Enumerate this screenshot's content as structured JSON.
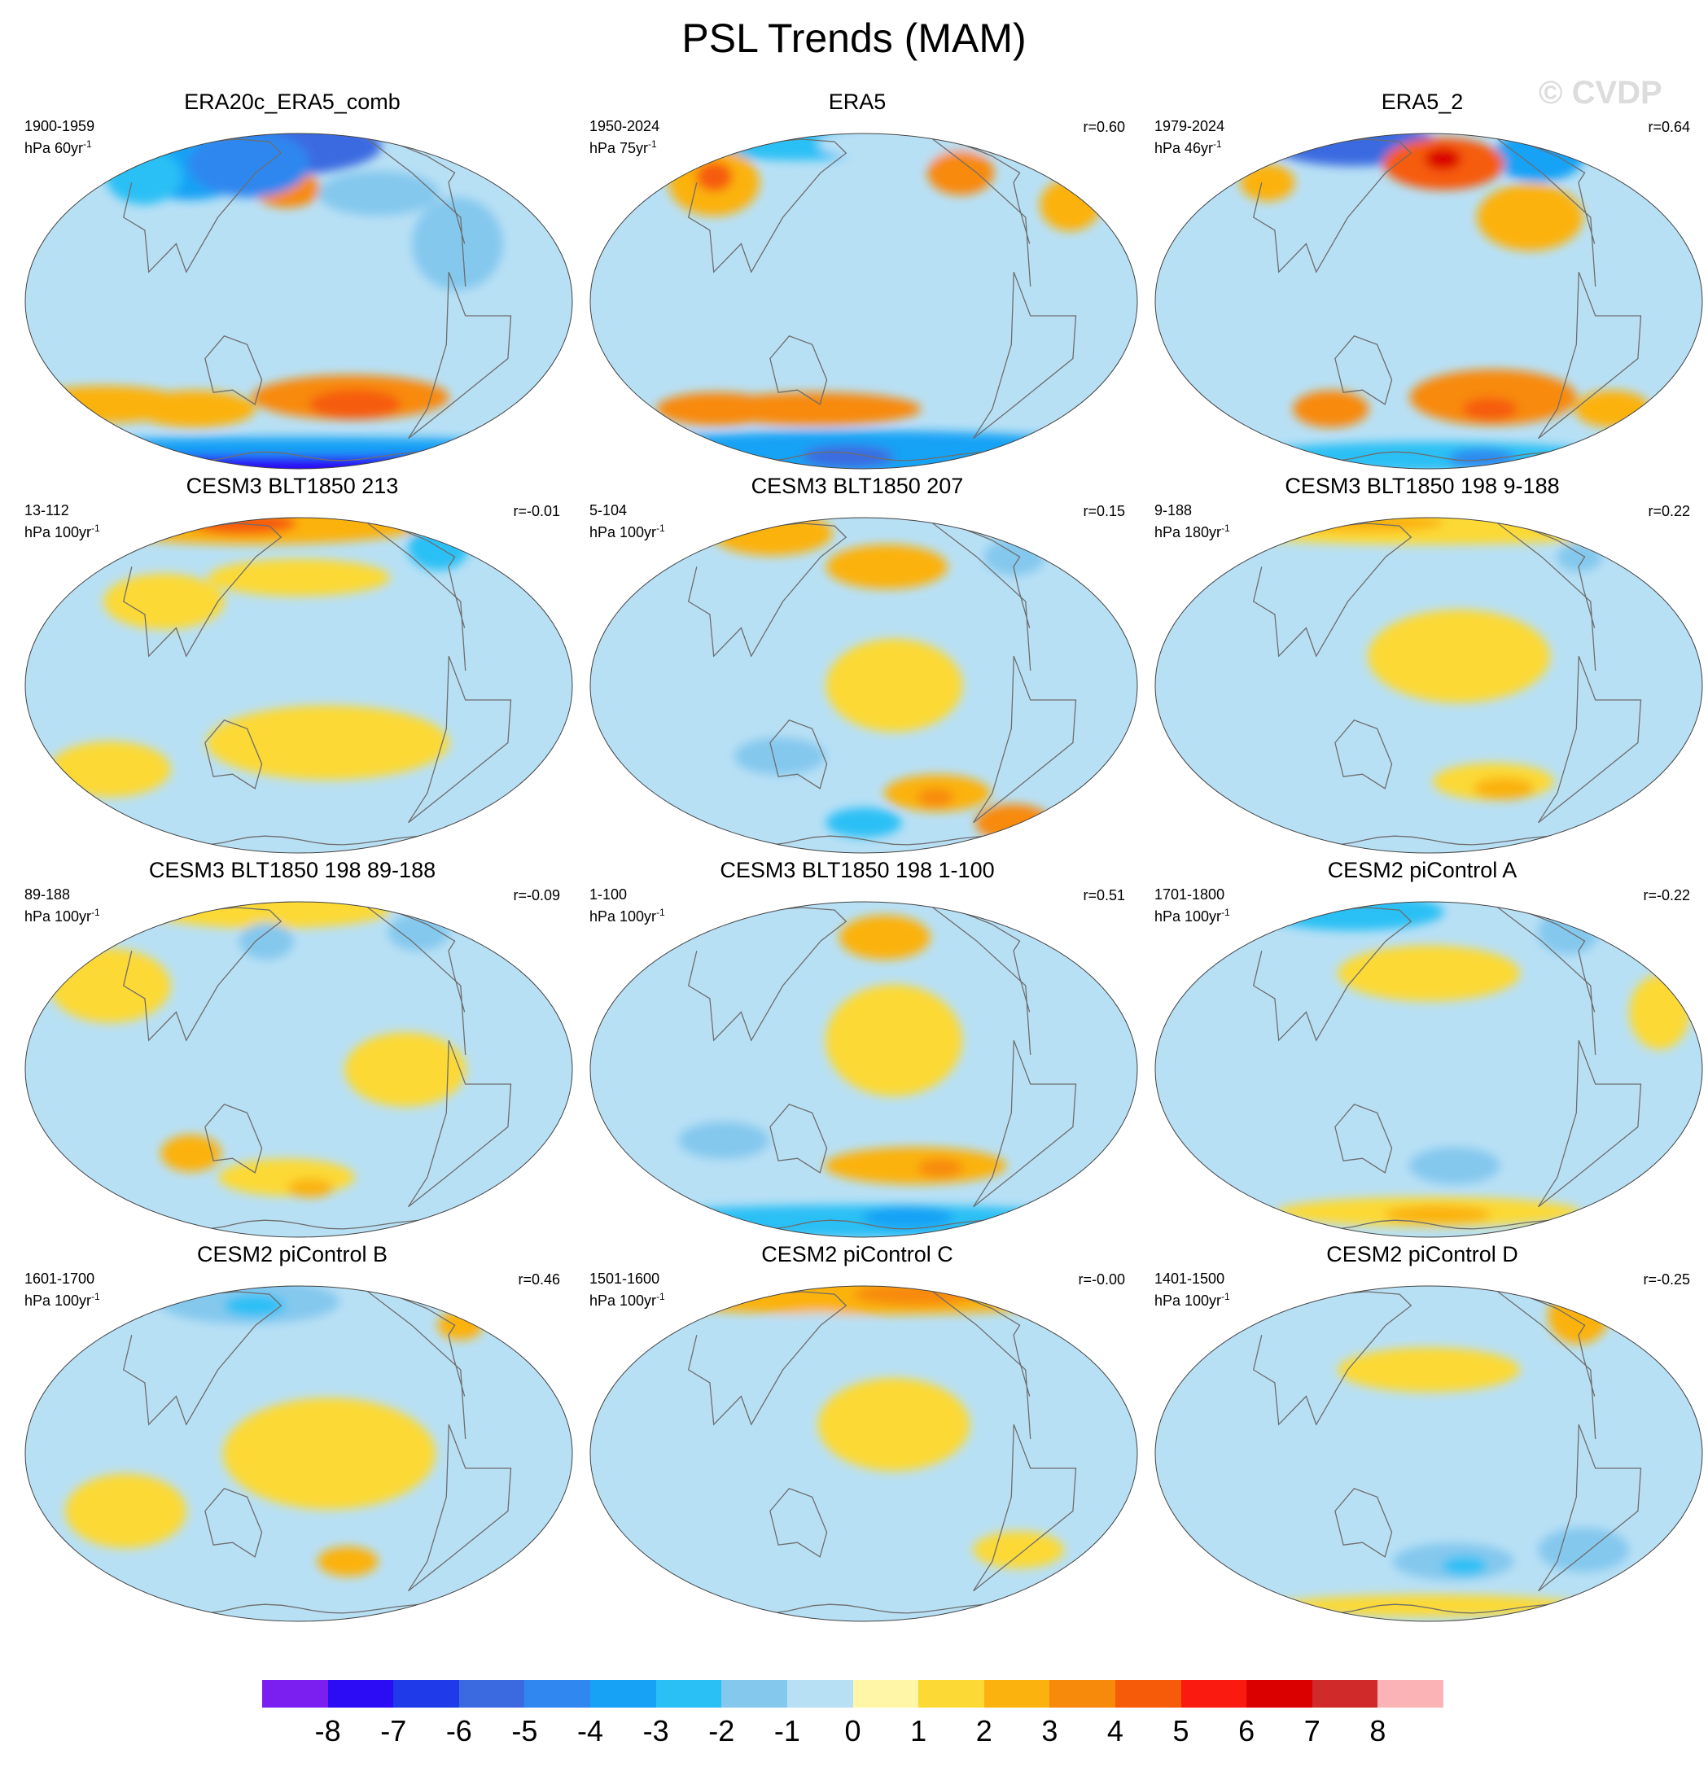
{
  "figure_title": "PSL Trends (MAM)",
  "watermark": "© CVDP",
  "chart_data": [
    {
      "type": "heatmap",
      "projection": "Robinson (Pacific-centred)",
      "title": "ERA20c_ERA5_comb",
      "period": "1900-1959",
      "units": "hPa 60yr",
      "units_sup": "-1",
      "r": "",
      "features": [
        {
          "lon": 150,
          "lat": 68,
          "rx": 70,
          "ry": 16,
          "v": -6
        },
        {
          "lon": 65,
          "lat": 58,
          "rx": 45,
          "ry": 22,
          "v": -4
        },
        {
          "lon": 40,
          "lat": 48,
          "rx": 25,
          "ry": 15,
          "v": -3
        },
        {
          "lon": 170,
          "lat": 42,
          "rx": 22,
          "ry": 10,
          "v": 3
        },
        {
          "lon": 130,
          "lat": 55,
          "rx": 40,
          "ry": 18,
          "v": -5
        },
        {
          "lon": 245,
          "lat": 40,
          "rx": 40,
          "ry": 12,
          "v": -2
        },
        {
          "lon": 290,
          "lat": 20,
          "rx": 30,
          "ry": 25,
          "v": -2
        },
        {
          "lon": 220,
          "lat": -35,
          "rx": 65,
          "ry": 12,
          "v": 3
        },
        {
          "lon": 225,
          "lat": -38,
          "rx": 30,
          "ry": 8,
          "v": 4
        },
        {
          "lon": 25,
          "lat": -38,
          "rx": 55,
          "ry": 10,
          "v": 2
        },
        {
          "lon": 95,
          "lat": -40,
          "rx": 40,
          "ry": 10,
          "v": 2
        },
        {
          "lon": 180,
          "lat": -72,
          "rx": 180,
          "ry": 10,
          "v": -8
        },
        {
          "lon": 180,
          "lat": -60,
          "rx": 180,
          "ry": 5,
          "v": -4
        }
      ]
    },
    {
      "type": "heatmap",
      "projection": "Robinson (Pacific-centred)",
      "title": "ERA5",
      "period": "1950-2024",
      "units": "hPa 75yr",
      "units_sup": "-1",
      "r": "r=0.60",
      "features": [
        {
          "lon": 90,
          "lat": 72,
          "rx": 70,
          "ry": 10,
          "v": -3
        },
        {
          "lon": 240,
          "lat": 70,
          "rx": 60,
          "ry": 10,
          "v": -1
        },
        {
          "lon": 50,
          "lat": 45,
          "rx": 30,
          "ry": 18,
          "v": 2
        },
        {
          "lon": 45,
          "lat": 48,
          "rx": 12,
          "ry": 8,
          "v": 4
        },
        {
          "lon": 270,
          "lat": 50,
          "rx": 22,
          "ry": 12,
          "v": 3
        },
        {
          "lon": 340,
          "lat": 35,
          "rx": 20,
          "ry": 14,
          "v": 2
        },
        {
          "lon": 140,
          "lat": -40,
          "rx": 70,
          "ry": 9,
          "v": 3
        },
        {
          "lon": 60,
          "lat": -40,
          "rx": 40,
          "ry": 9,
          "v": 3
        },
        {
          "lon": 180,
          "lat": -65,
          "rx": 180,
          "ry": 12,
          "v": -4
        },
        {
          "lon": 160,
          "lat": -68,
          "rx": 30,
          "ry": 6,
          "v": -6
        }
      ]
    },
    {
      "type": "heatmap",
      "projection": "Robinson (Pacific-centred)",
      "title": "ERA5_2",
      "period": "1979-2024",
      "units": "hPa 46yr",
      "units_sup": "-1",
      "r": "r=0.64",
      "features": [
        {
          "lon": 80,
          "lat": 70,
          "rx": 55,
          "ry": 12,
          "v": -6
        },
        {
          "lon": 300,
          "lat": 60,
          "rx": 30,
          "ry": 14,
          "v": -4
        },
        {
          "lon": 195,
          "lat": 55,
          "rx": 40,
          "ry": 14,
          "v": 4
        },
        {
          "lon": 195,
          "lat": 58,
          "rx": 12,
          "ry": 6,
          "v": 6
        },
        {
          "lon": 40,
          "lat": 45,
          "rx": 18,
          "ry": 10,
          "v": 2
        },
        {
          "lon": 255,
          "lat": 30,
          "rx": 35,
          "ry": 18,
          "v": 2
        },
        {
          "lon": 230,
          "lat": -35,
          "rx": 55,
          "ry": 15,
          "v": 3
        },
        {
          "lon": 230,
          "lat": -40,
          "rx": 18,
          "ry": 6,
          "v": 4
        },
        {
          "lon": 100,
          "lat": -40,
          "rx": 25,
          "ry": 10,
          "v": 3
        },
        {
          "lon": 330,
          "lat": -40,
          "rx": 25,
          "ry": 10,
          "v": 2
        },
        {
          "lon": 180,
          "lat": -68,
          "rx": 120,
          "ry": 8,
          "v": -3
        },
        {
          "lon": 250,
          "lat": -70,
          "rx": 22,
          "ry": 5,
          "v": -5
        }
      ]
    },
    {
      "type": "heatmap",
      "projection": "Robinson (Pacific-centred)",
      "title": "CESM3 BLT1850 213",
      "period": "13-112",
      "units": "hPa 100yr",
      "units_sup": "-1",
      "r": "r=-0.01",
      "features": [
        {
          "lon": 120,
          "lat": 72,
          "rx": 110,
          "ry": 10,
          "v": 2
        },
        {
          "lon": 100,
          "lat": 75,
          "rx": 35,
          "ry": 6,
          "v": 4
        },
        {
          "lon": 320,
          "lat": 55,
          "rx": 20,
          "ry": 12,
          "v": -3
        },
        {
          "lon": 200,
          "lat": -20,
          "rx": 80,
          "ry": 20,
          "v": 1
        },
        {
          "lon": 40,
          "lat": -30,
          "rx": 40,
          "ry": 15,
          "v": 1
        },
        {
          "lon": 180,
          "lat": 40,
          "rx": 60,
          "ry": 10,
          "v": 1
        },
        {
          "lon": 80,
          "lat": 30,
          "rx": 40,
          "ry": 15,
          "v": 1
        }
      ]
    },
    {
      "type": "heatmap",
      "projection": "Robinson (Pacific-centred)",
      "title": "CESM3 BLT1850 207",
      "period": "5-104",
      "units": "hPa 100yr",
      "units_sup": "-1",
      "r": "r=0.15",
      "features": [
        {
          "lon": 70,
          "lat": 65,
          "rx": 40,
          "ry": 12,
          "v": 2
        },
        {
          "lon": 200,
          "lat": 45,
          "rx": 40,
          "ry": 12,
          "v": 2
        },
        {
          "lon": 200,
          "lat": 0,
          "rx": 45,
          "ry": 25,
          "v": 1
        },
        {
          "lon": 240,
          "lat": -40,
          "rx": 35,
          "ry": 10,
          "v": 2
        },
        {
          "lon": 240,
          "lat": -42,
          "rx": 12,
          "ry": 5,
          "v": 3
        },
        {
          "lon": 180,
          "lat": -55,
          "rx": 25,
          "ry": 8,
          "v": -3
        },
        {
          "lon": 330,
          "lat": -55,
          "rx": 25,
          "ry": 10,
          "v": 3
        },
        {
          "lon": 320,
          "lat": 50,
          "rx": 20,
          "ry": 10,
          "v": -2
        },
        {
          "lon": 120,
          "lat": -25,
          "rx": 30,
          "ry": 10,
          "v": -2
        }
      ]
    },
    {
      "type": "heatmap",
      "projection": "Robinson (Pacific-centred)",
      "title": "CESM3 BLT1850 198 9-188",
      "period": "9-188",
      "units": "hPa 180yr",
      "units_sup": "-1",
      "r": "r=0.22",
      "features": [
        {
          "lon": 180,
          "lat": 72,
          "rx": 160,
          "ry": 10,
          "v": 1
        },
        {
          "lon": 90,
          "lat": 76,
          "rx": 50,
          "ry": 5,
          "v": 2
        },
        {
          "lon": 320,
          "lat": 50,
          "rx": 15,
          "ry": 8,
          "v": -2
        },
        {
          "lon": 200,
          "lat": 10,
          "rx": 60,
          "ry": 25,
          "v": 1
        },
        {
          "lon": 230,
          "lat": -35,
          "rx": 40,
          "ry": 10,
          "v": 1
        },
        {
          "lon": 240,
          "lat": -38,
          "rx": 20,
          "ry": 6,
          "v": 2
        }
      ]
    },
    {
      "type": "heatmap",
      "projection": "Robinson (Pacific-centred)",
      "title": "CESM3 BLT1850 198 89-188",
      "period": "89-188",
      "units": "hPa 100yr",
      "units_sup": "-1",
      "r": "r=-0.09",
      "features": [
        {
          "lon": 140,
          "lat": 72,
          "rx": 80,
          "ry": 10,
          "v": 1
        },
        {
          "lon": 300,
          "lat": 55,
          "rx": 20,
          "ry": 10,
          "v": -2
        },
        {
          "lon": 150,
          "lat": 50,
          "rx": 18,
          "ry": 10,
          "v": -2
        },
        {
          "lon": 40,
          "lat": 30,
          "rx": 40,
          "ry": 20,
          "v": 1
        },
        {
          "lon": 250,
          "lat": 0,
          "rx": 40,
          "ry": 20,
          "v": 1
        },
        {
          "lon": 170,
          "lat": -40,
          "rx": 45,
          "ry": 10,
          "v": 1
        },
        {
          "lon": 190,
          "lat": -45,
          "rx": 15,
          "ry": 5,
          "v": 2
        },
        {
          "lon": 100,
          "lat": -30,
          "rx": 20,
          "ry": 10,
          "v": 2
        }
      ]
    },
    {
      "type": "heatmap",
      "projection": "Robinson (Pacific-centred)",
      "title": "CESM3 BLT1850 198 1-100",
      "period": "1-100",
      "units": "hPa 100yr",
      "units_sup": "-1",
      "r": "r=0.51",
      "features": [
        {
          "lon": 200,
          "lat": 52,
          "rx": 30,
          "ry": 12,
          "v": 2
        },
        {
          "lon": 200,
          "lat": 10,
          "rx": 45,
          "ry": 30,
          "v": 1
        },
        {
          "lon": 220,
          "lat": -35,
          "rx": 60,
          "ry": 10,
          "v": 2
        },
        {
          "lon": 240,
          "lat": -36,
          "rx": 15,
          "ry": 5,
          "v": 3
        },
        {
          "lon": 180,
          "lat": -65,
          "rx": 170,
          "ry": 9,
          "v": -3
        },
        {
          "lon": 230,
          "lat": -62,
          "rx": 30,
          "ry": 6,
          "v": -4
        },
        {
          "lon": 80,
          "lat": -25,
          "rx": 30,
          "ry": 10,
          "v": -2
        }
      ]
    },
    {
      "type": "heatmap",
      "projection": "Robinson (Pacific-centred)",
      "title": "CESM2 piControl A",
      "period": "1701-1800",
      "units": "hPa 100yr",
      "units_sup": "-1",
      "r": "r=-0.22",
      "features": [
        {
          "lon": 80,
          "lat": 70,
          "rx": 60,
          "ry": 10,
          "v": -3
        },
        {
          "lon": 320,
          "lat": 55,
          "rx": 20,
          "ry": 12,
          "v": -2
        },
        {
          "lon": 180,
          "lat": 35,
          "rx": 60,
          "ry": 15,
          "v": 1
        },
        {
          "lon": 200,
          "lat": -35,
          "rx": 30,
          "ry": 10,
          "v": -2
        },
        {
          "lon": 180,
          "lat": -58,
          "rx": 100,
          "ry": 8,
          "v": 1
        },
        {
          "lon": 190,
          "lat": -60,
          "rx": 35,
          "ry": 5,
          "v": 2
        },
        {
          "lon": 340,
          "lat": 20,
          "rx": 20,
          "ry": 20,
          "v": 1
        }
      ]
    },
    {
      "type": "heatmap",
      "projection": "Robinson (Pacific-centred)",
      "title": "CESM2 piControl B",
      "period": "1601-1700",
      "units": "hPa 100yr",
      "units_sup": "-1",
      "r": "r=0.46",
      "features": [
        {
          "lon": 120,
          "lat": 65,
          "rx": 60,
          "ry": 12,
          "v": -2
        },
        {
          "lon": 130,
          "lat": 62,
          "rx": 20,
          "ry": 6,
          "v": -3
        },
        {
          "lon": 200,
          "lat": 0,
          "rx": 70,
          "ry": 30,
          "v": 1
        },
        {
          "lon": 220,
          "lat": -40,
          "rx": 20,
          "ry": 8,
          "v": 2
        },
        {
          "lon": 330,
          "lat": 50,
          "rx": 15,
          "ry": 8,
          "v": 2
        },
        {
          "lon": 60,
          "lat": -20,
          "rx": 40,
          "ry": 20,
          "v": 1
        }
      ]
    },
    {
      "type": "heatmap",
      "projection": "Robinson (Pacific-centred)",
      "title": "CESM2 piControl C",
      "period": "1501-1600",
      "units": "hPa 100yr",
      "units_sup": "-1",
      "r": "r=-0.00",
      "features": [
        {
          "lon": 180,
          "lat": 70,
          "rx": 160,
          "ry": 10,
          "v": 2
        },
        {
          "lon": 250,
          "lat": 72,
          "rx": 40,
          "ry": 6,
          "v": 3
        },
        {
          "lon": 140,
          "lat": 45,
          "rx": 40,
          "ry": 12,
          "v": -1
        },
        {
          "lon": 200,
          "lat": 10,
          "rx": 50,
          "ry": 25,
          "v": 1
        },
        {
          "lon": 120,
          "lat": -20,
          "rx": 40,
          "ry": 20,
          "v": -1
        },
        {
          "lon": 300,
          "lat": -35,
          "rx": 30,
          "ry": 10,
          "v": 1
        }
      ]
    },
    {
      "type": "heatmap",
      "projection": "Robinson (Pacific-centred)",
      "title": "CESM2 piControl D",
      "period": "1401-1500",
      "units": "hPa 100yr",
      "units_sup": "-1",
      "r": "r=-0.25",
      "features": [
        {
          "lon": 330,
          "lat": 55,
          "rx": 20,
          "ry": 15,
          "v": 2
        },
        {
          "lon": 140,
          "lat": 60,
          "rx": 50,
          "ry": 12,
          "v": -1
        },
        {
          "lon": 180,
          "lat": 30,
          "rx": 60,
          "ry": 12,
          "v": 1
        },
        {
          "lon": 200,
          "lat": -40,
          "rx": 40,
          "ry": 10,
          "v": -2
        },
        {
          "lon": 210,
          "lat": -42,
          "rx": 15,
          "ry": 5,
          "v": -3
        },
        {
          "lon": 300,
          "lat": -35,
          "rx": 30,
          "ry": 12,
          "v": -2
        },
        {
          "lon": 180,
          "lat": -65,
          "rx": 100,
          "ry": 6,
          "v": 1
        }
      ]
    }
  ],
  "colorbar": {
    "colors": [
      "#7a1ff0",
      "#2b0cf5",
      "#1f3ae8",
      "#3b6ae0",
      "#2f87ef",
      "#18a2f5",
      "#2ac0f5",
      "#84c8ee",
      "#b8e0f5",
      "#fff6a8",
      "#fcd935",
      "#fbb20e",
      "#f88a0b",
      "#f65b0a",
      "#fb1a0f",
      "#da0000",
      "#d02a2a",
      "#fcb3b5"
    ],
    "labels": [
      "-8",
      "-7",
      "-6",
      "-5",
      "-4",
      "-3",
      "-2",
      "-1",
      "0",
      "1",
      "2",
      "3",
      "4",
      "5",
      "6",
      "7",
      "8"
    ]
  }
}
